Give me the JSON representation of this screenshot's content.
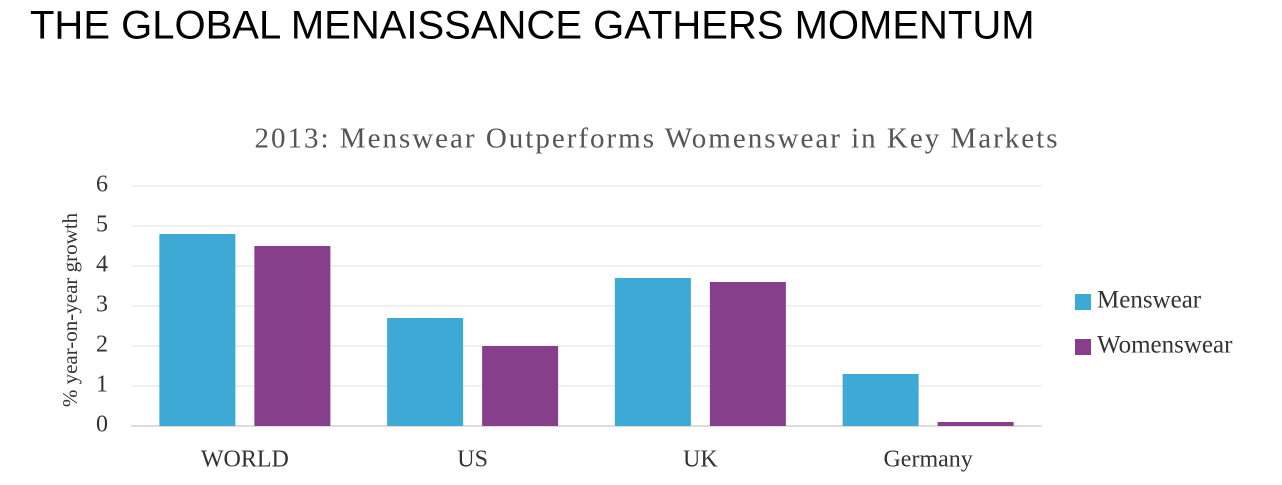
{
  "header": {
    "title": "THE GLOBAL MENAISSANCE GATHERS MOMENTUM"
  },
  "chart_data": {
    "type": "bar",
    "title": "2013: Menswear Outperforms Womenswear in Key Markets",
    "y_label": "% year-on-year growth",
    "categories": [
      "WORLD",
      "US",
      "UK",
      "Germany"
    ],
    "series": [
      {
        "name": "Menswear",
        "color": "#3fa9d5",
        "values": [
          4.8,
          2.7,
          3.7,
          1.3
        ]
      },
      {
        "name": "Womenswear",
        "color": "#873f8c",
        "values": [
          4.5,
          2.0,
          3.6,
          0.1
        ]
      }
    ],
    "ylim": [
      0,
      6
    ],
    "yticks": [
      0,
      1,
      2,
      3,
      4,
      5,
      6
    ],
    "grid": true,
    "legend": "right"
  }
}
